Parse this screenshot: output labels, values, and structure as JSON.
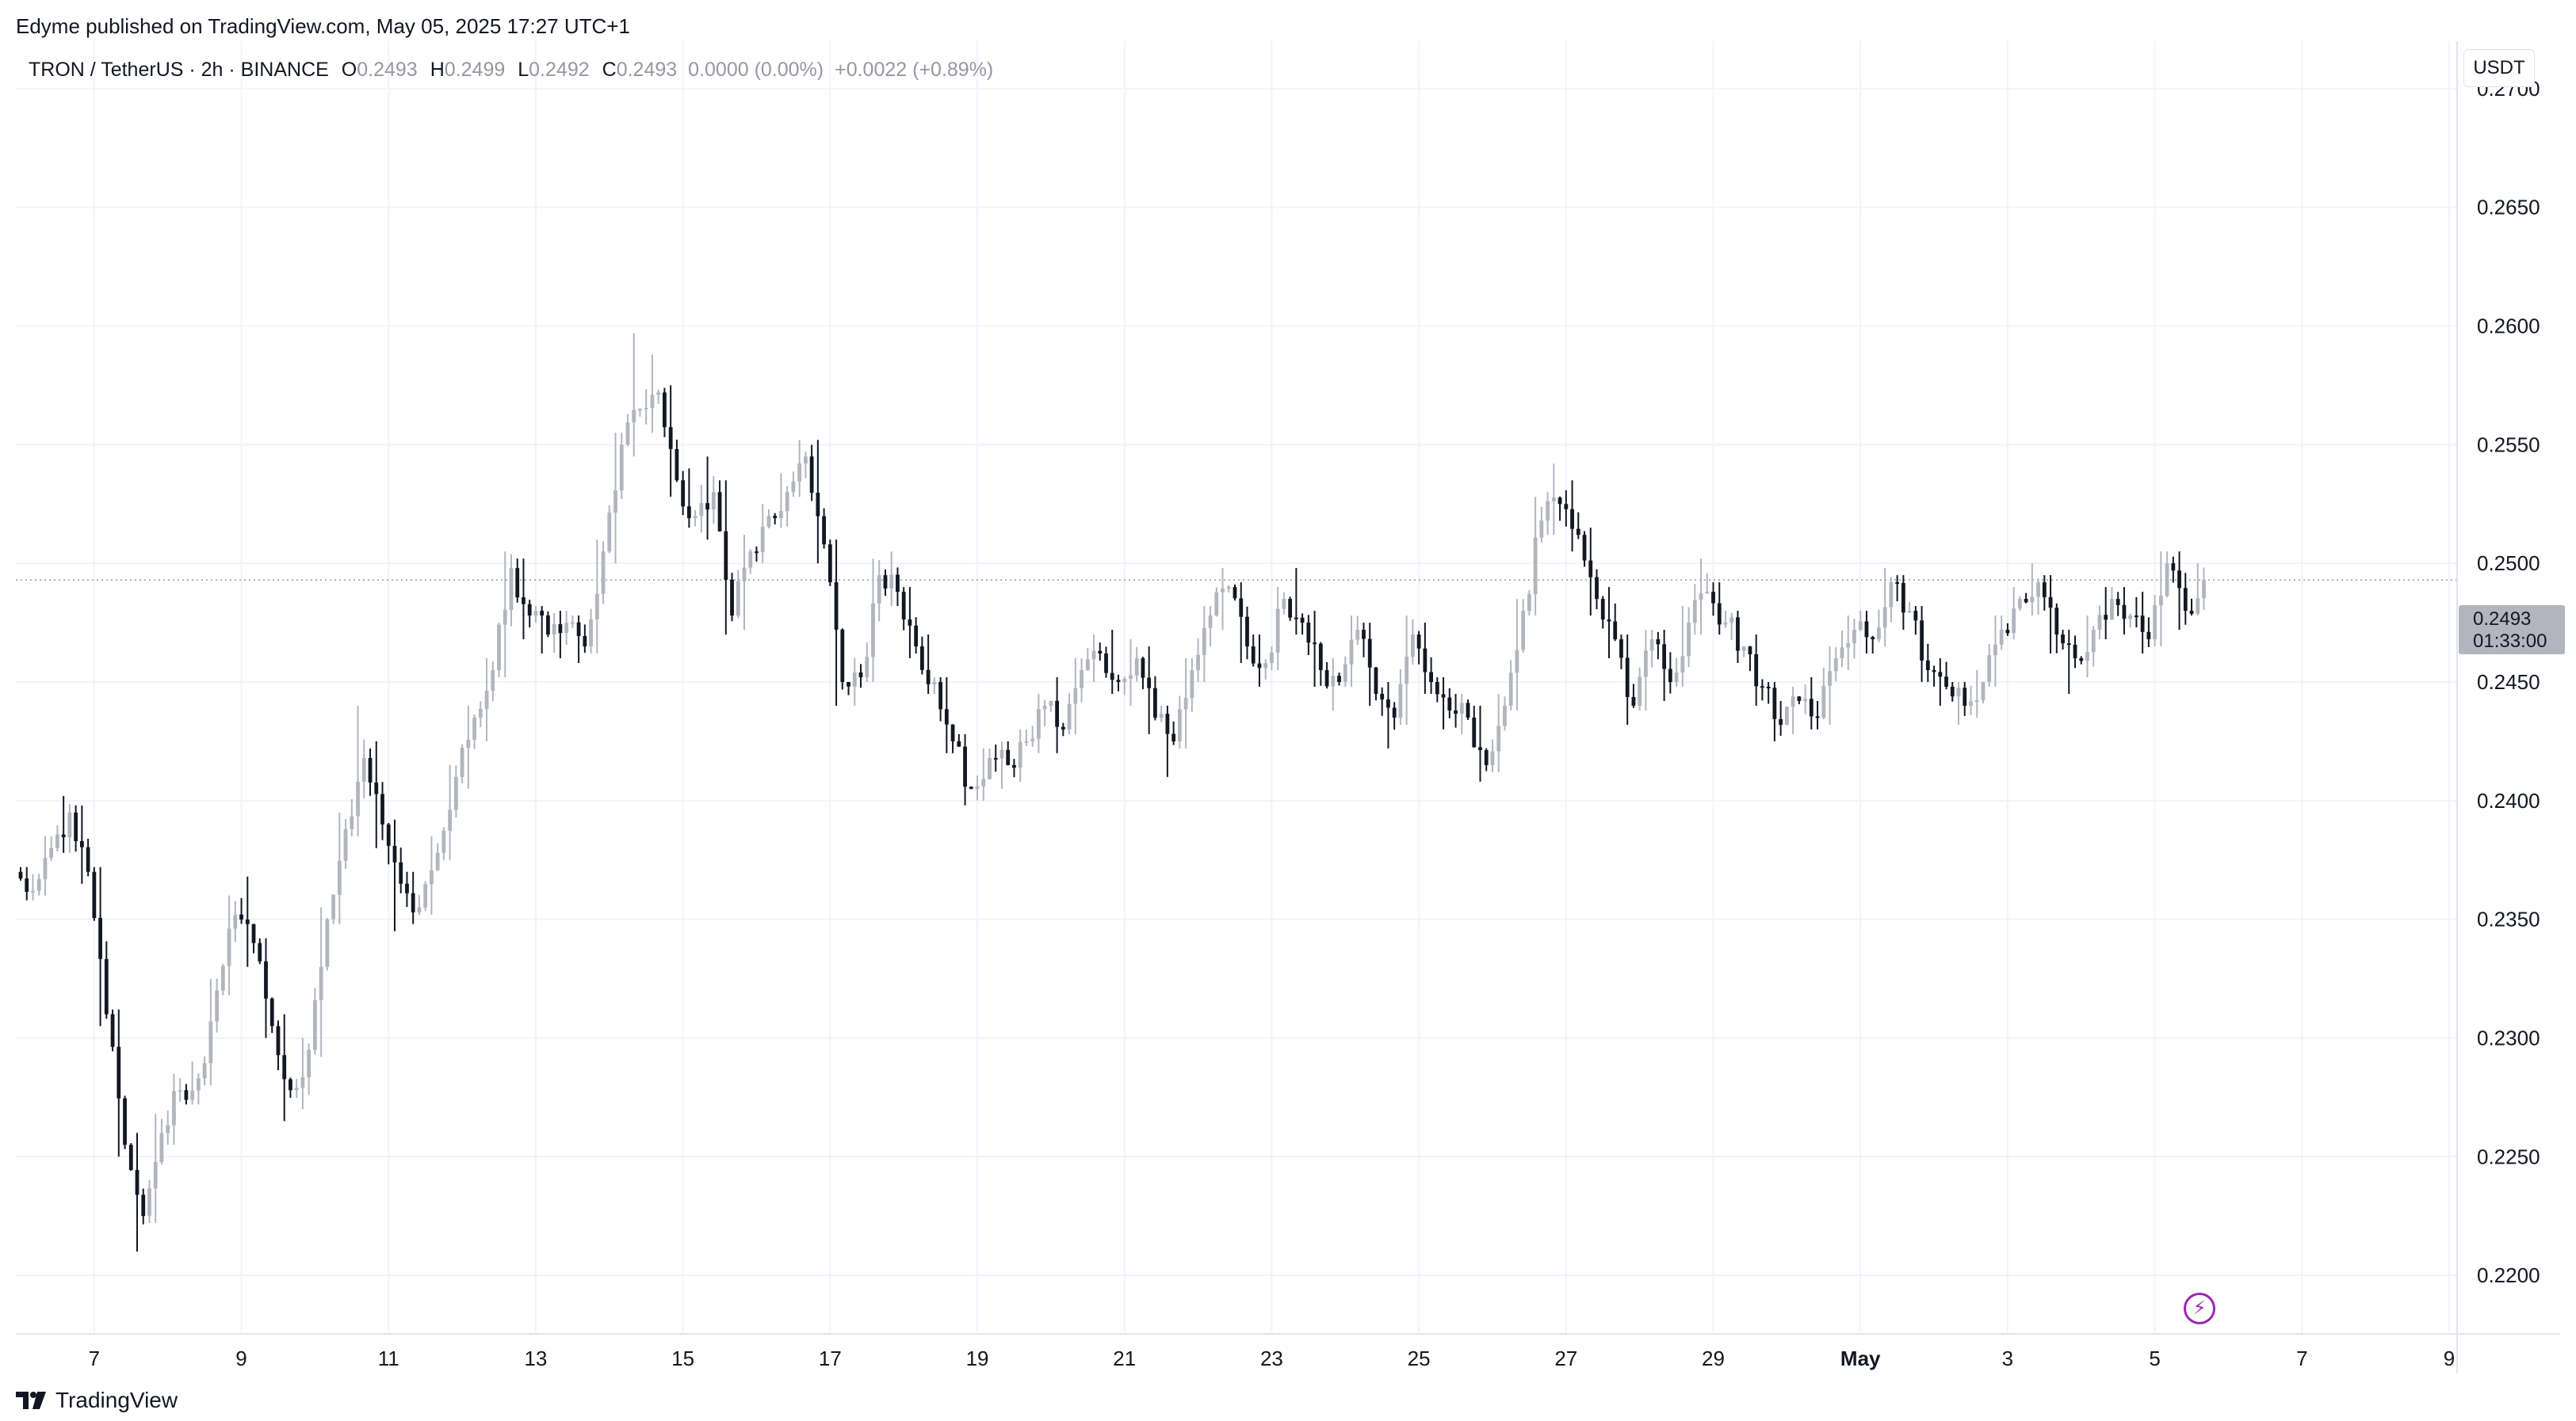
{
  "publisher": "Edyme published on TradingView.com, May 05, 2025 17:27 UTC+1",
  "legend": {
    "symbol": "TRON / TetherUS · 2h · BINANCE",
    "open_label": "O",
    "open": "0.2493",
    "high_label": "H",
    "high": "0.2499",
    "low_label": "L",
    "low": "0.2492",
    "close_label": "C",
    "close": "0.2493",
    "change": "0.0000 (0.00%)",
    "change2": "+0.0022 (+0.89%)"
  },
  "currency": "USDT",
  "price_tag": {
    "price": "0.2493",
    "countdown": "01:33:00"
  },
  "brand": "TradingView",
  "colors": {
    "up": "#b2b5be",
    "down": "#131722",
    "grid": "#f0f3fa",
    "last_price_line": "#9598a1",
    "flash": "#9c27b0"
  },
  "icons": {
    "flash": "lightning-icon",
    "brand": "tradingview-logo-icon"
  },
  "chart_data": {
    "type": "candlestick",
    "interval": "2h",
    "x_tick_labels": [
      "7",
      "9",
      "11",
      "13",
      "15",
      "17",
      "19",
      "21",
      "23",
      "25",
      "27",
      "29",
      "May",
      "3",
      "5",
      "7",
      "9"
    ],
    "x_tick_days": [
      7,
      9,
      11,
      13,
      15,
      17,
      19,
      21,
      23,
      25,
      27,
      29,
      31,
      33,
      35,
      37,
      39
    ],
    "x_start_day": 6.0,
    "x_end_day": 39.0,
    "y_tick_labels": [
      "0.2700",
      "0.2650",
      "0.2600",
      "0.2550",
      "0.2500",
      "0.2450",
      "0.2400",
      "0.2350",
      "0.2300",
      "0.2250",
      "0.2200"
    ],
    "y_range": [
      0.2176,
      0.272
    ],
    "last_price": 0.2493,
    "grid": true,
    "candles_note": "daily path: [day, open, high, low, close]",
    "candles": [
      [
        6.0,
        0.237,
        0.2372,
        0.2358,
        0.2362
      ],
      [
        6.25,
        0.2362,
        0.2385,
        0.236,
        0.238
      ],
      [
        6.5,
        0.238,
        0.2402,
        0.2378,
        0.2395
      ],
      [
        6.75,
        0.2395,
        0.2398,
        0.2365,
        0.237
      ],
      [
        7.0,
        0.237,
        0.2372,
        0.2305,
        0.231
      ],
      [
        7.25,
        0.231,
        0.2312,
        0.225,
        0.2255
      ],
      [
        7.5,
        0.2255,
        0.226,
        0.221,
        0.2225
      ],
      [
        7.75,
        0.2225,
        0.2268,
        0.2222,
        0.226
      ],
      [
        8.0,
        0.226,
        0.2285,
        0.2255,
        0.2278
      ],
      [
        8.25,
        0.2278,
        0.229,
        0.2272,
        0.2283
      ],
      [
        8.5,
        0.2283,
        0.2325,
        0.228,
        0.232
      ],
      [
        8.75,
        0.232,
        0.236,
        0.2318,
        0.2352
      ],
      [
        9.0,
        0.2352,
        0.2368,
        0.233,
        0.234
      ],
      [
        9.25,
        0.234,
        0.2342,
        0.23,
        0.2305
      ],
      [
        9.5,
        0.2305,
        0.231,
        0.2265,
        0.2278
      ],
      [
        9.75,
        0.2278,
        0.23,
        0.227,
        0.2295
      ],
      [
        10.0,
        0.2295,
        0.2355,
        0.2292,
        0.235
      ],
      [
        10.25,
        0.235,
        0.2395,
        0.2348,
        0.2388
      ],
      [
        10.5,
        0.2388,
        0.244,
        0.2385,
        0.2418
      ],
      [
        10.75,
        0.2418,
        0.2425,
        0.238,
        0.239
      ],
      [
        11.0,
        0.239,
        0.2392,
        0.2345,
        0.2365
      ],
      [
        11.25,
        0.2365,
        0.237,
        0.2348,
        0.2355
      ],
      [
        11.5,
        0.2355,
        0.2385,
        0.2352,
        0.2378
      ],
      [
        11.75,
        0.2378,
        0.2415,
        0.2375,
        0.241
      ],
      [
        12.0,
        0.241,
        0.244,
        0.2405,
        0.2435
      ],
      [
        12.25,
        0.2435,
        0.246,
        0.2425,
        0.2455
      ],
      [
        12.5,
        0.2455,
        0.2505,
        0.2452,
        0.2498
      ],
      [
        12.75,
        0.2498,
        0.2502,
        0.2468,
        0.2478
      ],
      [
        13.0,
        0.2478,
        0.2482,
        0.2462,
        0.247
      ],
      [
        13.25,
        0.247,
        0.248,
        0.246,
        0.2475
      ],
      [
        13.5,
        0.2475,
        0.2478,
        0.2458,
        0.2465
      ],
      [
        13.75,
        0.2465,
        0.251,
        0.2462,
        0.2505
      ],
      [
        14.0,
        0.2505,
        0.2555,
        0.25,
        0.255
      ],
      [
        14.25,
        0.255,
        0.2597,
        0.2545,
        0.2565
      ],
      [
        14.5,
        0.2565,
        0.2588,
        0.2555,
        0.2572
      ],
      [
        14.75,
        0.2572,
        0.2575,
        0.2528,
        0.2535
      ],
      [
        15.0,
        0.2535,
        0.254,
        0.2515,
        0.252
      ],
      [
        15.25,
        0.252,
        0.2545,
        0.251,
        0.253
      ],
      [
        15.5,
        0.253,
        0.2535,
        0.247,
        0.2478
      ],
      [
        15.75,
        0.2478,
        0.2512,
        0.2472,
        0.2505
      ],
      [
        16.0,
        0.2505,
        0.2525,
        0.25,
        0.252
      ],
      [
        16.25,
        0.252,
        0.2538,
        0.2515,
        0.253
      ],
      [
        16.5,
        0.253,
        0.2552,
        0.2528,
        0.2545
      ],
      [
        16.75,
        0.2545,
        0.2552,
        0.25,
        0.2508
      ],
      [
        17.0,
        0.2508,
        0.251,
        0.244,
        0.245
      ],
      [
        17.25,
        0.245,
        0.246,
        0.244,
        0.2452
      ],
      [
        17.5,
        0.2452,
        0.2502,
        0.245,
        0.2495
      ],
      [
        17.75,
        0.2495,
        0.2505,
        0.2482,
        0.2488
      ],
      [
        18.0,
        0.2488,
        0.249,
        0.246,
        0.2465
      ],
      [
        18.25,
        0.2465,
        0.247,
        0.2445,
        0.245
      ],
      [
        18.5,
        0.245,
        0.2452,
        0.242,
        0.2425
      ],
      [
        18.75,
        0.2425,
        0.2428,
        0.2398,
        0.2405
      ],
      [
        19.0,
        0.2405,
        0.2422,
        0.24,
        0.2418
      ],
      [
        19.25,
        0.2418,
        0.2425,
        0.2405,
        0.2415
      ],
      [
        19.5,
        0.2415,
        0.243,
        0.2408,
        0.2425
      ],
      [
        19.75,
        0.2425,
        0.2445,
        0.242,
        0.244
      ],
      [
        20.0,
        0.244,
        0.2452,
        0.242,
        0.243
      ],
      [
        20.25,
        0.243,
        0.246,
        0.2428,
        0.2455
      ],
      [
        20.5,
        0.2455,
        0.247,
        0.245,
        0.2462
      ],
      [
        20.75,
        0.2462,
        0.2472,
        0.2445,
        0.245
      ],
      [
        21.0,
        0.245,
        0.2468,
        0.244,
        0.246
      ],
      [
        21.25,
        0.246,
        0.2465,
        0.2428,
        0.2435
      ],
      [
        21.5,
        0.2435,
        0.244,
        0.241,
        0.2425
      ],
      [
        21.75,
        0.2425,
        0.246,
        0.2422,
        0.2455
      ],
      [
        22.0,
        0.2455,
        0.2482,
        0.245,
        0.2478
      ],
      [
        22.25,
        0.2478,
        0.2498,
        0.2472,
        0.249
      ],
      [
        22.5,
        0.249,
        0.2492,
        0.2458,
        0.2465
      ],
      [
        22.75,
        0.2465,
        0.247,
        0.2448,
        0.2458
      ],
      [
        23.0,
        0.2458,
        0.249,
        0.2455,
        0.2485
      ],
      [
        23.25,
        0.2485,
        0.2498,
        0.247,
        0.2475
      ],
      [
        23.5,
        0.2475,
        0.248,
        0.2448,
        0.2455
      ],
      [
        23.75,
        0.2455,
        0.246,
        0.2438,
        0.245
      ],
      [
        24.0,
        0.245,
        0.2478,
        0.2448,
        0.2472
      ],
      [
        24.25,
        0.2472,
        0.2475,
        0.244,
        0.2445
      ],
      [
        24.5,
        0.2445,
        0.245,
        0.2422,
        0.2435
      ],
      [
        24.75,
        0.2435,
        0.2478,
        0.2432,
        0.247
      ],
      [
        25.0,
        0.247,
        0.2475,
        0.2445,
        0.245
      ],
      [
        25.25,
        0.245,
        0.2452,
        0.243,
        0.2438
      ],
      [
        25.5,
        0.2438,
        0.2445,
        0.2428,
        0.2435
      ],
      [
        25.75,
        0.2435,
        0.244,
        0.2408,
        0.2415
      ],
      [
        26.0,
        0.2415,
        0.2445,
        0.2412,
        0.244
      ],
      [
        26.25,
        0.244,
        0.2485,
        0.2438,
        0.248
      ],
      [
        26.5,
        0.248,
        0.2528,
        0.2478,
        0.2518
      ],
      [
        26.75,
        0.2518,
        0.2542,
        0.2512,
        0.2525
      ],
      [
        27.0,
        0.2525,
        0.2535,
        0.2505,
        0.2512
      ],
      [
        27.25,
        0.2512,
        0.2515,
        0.2478,
        0.2485
      ],
      [
        27.5,
        0.2485,
        0.249,
        0.246,
        0.2468
      ],
      [
        27.75,
        0.2468,
        0.247,
        0.2432,
        0.244
      ],
      [
        28.0,
        0.244,
        0.2472,
        0.2438,
        0.2468
      ],
      [
        28.25,
        0.2468,
        0.2472,
        0.2442,
        0.245
      ],
      [
        28.5,
        0.245,
        0.2482,
        0.2448,
        0.2475
      ],
      [
        28.75,
        0.2475,
        0.2502,
        0.247,
        0.2488
      ],
      [
        29.0,
        0.2488,
        0.2492,
        0.247,
        0.2475
      ],
      [
        29.25,
        0.2475,
        0.248,
        0.2458,
        0.2465
      ],
      [
        29.5,
        0.2465,
        0.247,
        0.244,
        0.2448
      ],
      [
        29.75,
        0.2448,
        0.245,
        0.2425,
        0.2432
      ],
      [
        30.0,
        0.2432,
        0.2448,
        0.2428,
        0.2442
      ],
      [
        30.25,
        0.2442,
        0.2452,
        0.243,
        0.2435
      ],
      [
        30.5,
        0.2435,
        0.2465,
        0.2432,
        0.246
      ],
      [
        30.75,
        0.246,
        0.2478,
        0.2455,
        0.2472
      ],
      [
        31.0,
        0.2472,
        0.248,
        0.2462,
        0.2468
      ],
      [
        31.25,
        0.2468,
        0.2498,
        0.2465,
        0.2492
      ],
      [
        31.5,
        0.2492,
        0.2495,
        0.2472,
        0.248
      ],
      [
        31.75,
        0.248,
        0.2482,
        0.245,
        0.2455
      ],
      [
        32.0,
        0.2455,
        0.246,
        0.244,
        0.2448
      ],
      [
        32.25,
        0.2448,
        0.245,
        0.2432,
        0.244
      ],
      [
        32.5,
        0.244,
        0.2455,
        0.2435,
        0.245
      ],
      [
        32.75,
        0.245,
        0.2478,
        0.2448,
        0.2472
      ],
      [
        33.0,
        0.2472,
        0.249,
        0.2468,
        0.2485
      ],
      [
        33.25,
        0.2485,
        0.25,
        0.2478,
        0.2492
      ],
      [
        33.5,
        0.2492,
        0.2495,
        0.2462,
        0.247
      ],
      [
        33.75,
        0.247,
        0.2472,
        0.2445,
        0.246
      ],
      [
        34.0,
        0.246,
        0.2478,
        0.2452,
        0.2472
      ],
      [
        34.25,
        0.2472,
        0.249,
        0.2468,
        0.2485
      ],
      [
        34.5,
        0.2485,
        0.249,
        0.247,
        0.2478
      ],
      [
        34.75,
        0.2478,
        0.2488,
        0.2462,
        0.2468
      ],
      [
        35.0,
        0.2468,
        0.2505,
        0.2465,
        0.25
      ],
      [
        35.25,
        0.25,
        0.2505,
        0.2472,
        0.248
      ],
      [
        35.5,
        0.248,
        0.25,
        0.2478,
        0.2493
      ]
    ]
  }
}
